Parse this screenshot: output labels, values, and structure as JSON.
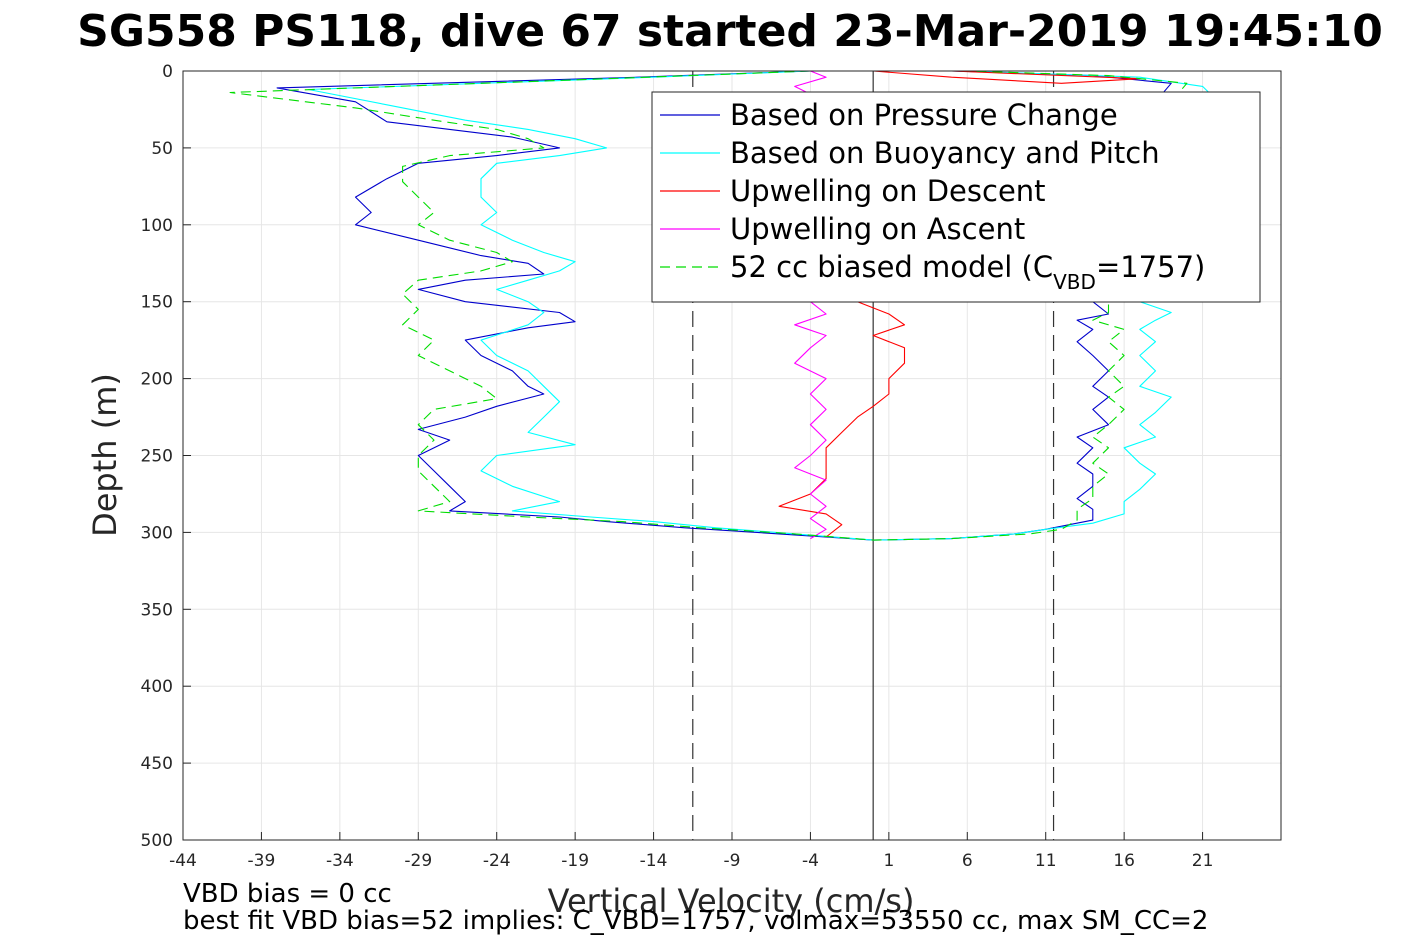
{
  "chart_data": {
    "type": "line",
    "title": "SG558 PS118, dive 67 started 23-Mar-2019 19:45:10",
    "xlabel": "Vertical Velocity (cm/s)",
    "ylabel": "Depth (m)",
    "xlim": [
      -44,
      26
    ],
    "ylim": [
      0,
      500
    ],
    "y_reversed": true,
    "grid": true,
    "xticks": [
      -44,
      -39,
      -34,
      -29,
      -24,
      -19,
      -14,
      -9,
      -4,
      1,
      6,
      11,
      16,
      21
    ],
    "yticks": [
      0,
      50,
      100,
      150,
      200,
      250,
      300,
      350,
      400,
      450,
      500
    ],
    "legend_position": "top-right",
    "legend": [
      {
        "label": "Based on Pressure Change",
        "color": "#0000cc",
        "dash": "solid"
      },
      {
        "label": "Based on Buoyancy and Pitch",
        "color": "#00ffff",
        "dash": "solid"
      },
      {
        "label": "Upwelling on Descent",
        "color": "#ff0000",
        "dash": "solid"
      },
      {
        "label": "Upwelling on Ascent",
        "color": "#ff00ff",
        "dash": "solid"
      },
      {
        "label_main": "52 cc biased model (C",
        "label_sub": "VBD",
        "label_tail": "=1757)",
        "color": "#00dd00",
        "dash": "dashed"
      }
    ],
    "reference_lines": [
      {
        "x": -11.5,
        "style": "dashed",
        "color": "#333333"
      },
      {
        "x": 0,
        "style": "solid",
        "color": "#333333"
      },
      {
        "x": 11.5,
        "style": "dashed",
        "color": "#333333"
      }
    ],
    "series": [
      {
        "name": "Based on Pressure Change",
        "color": "#0000cc",
        "dash": "solid",
        "points": [
          [
            -4,
            0
          ],
          [
            -15,
            4
          ],
          [
            -38,
            11
          ],
          [
            -33,
            20
          ],
          [
            -31,
            33
          ],
          [
            -27,
            38
          ],
          [
            -23,
            43
          ],
          [
            -20,
            50
          ],
          [
            -24,
            55
          ],
          [
            -29,
            60
          ],
          [
            -31,
            70
          ],
          [
            -33,
            82
          ],
          [
            -32,
            92
          ],
          [
            -33,
            100
          ],
          [
            -29,
            110
          ],
          [
            -25,
            120
          ],
          [
            -22,
            125
          ],
          [
            -21,
            132
          ],
          [
            -26,
            136
          ],
          [
            -29,
            142
          ],
          [
            -26,
            150
          ],
          [
            -20,
            157
          ],
          [
            -19,
            163
          ],
          [
            -22,
            167
          ],
          [
            -26,
            175
          ],
          [
            -25,
            185
          ],
          [
            -23,
            195
          ],
          [
            -22,
            205
          ],
          [
            -21,
            210
          ],
          [
            -24,
            218
          ],
          [
            -26,
            225
          ],
          [
            -29,
            233
          ],
          [
            -27,
            240
          ],
          [
            -29,
            250
          ],
          [
            -28,
            260
          ],
          [
            -27,
            270
          ],
          [
            -26,
            280
          ],
          [
            -27,
            286
          ],
          [
            -20,
            290
          ],
          [
            -17,
            293
          ],
          [
            -12,
            297
          ],
          [
            -6,
            301
          ],
          [
            0,
            305
          ],
          [
            5,
            304
          ],
          [
            9,
            301
          ],
          [
            11,
            298
          ],
          [
            14,
            292
          ],
          [
            14,
            285
          ],
          [
            13,
            278
          ],
          [
            14,
            270
          ],
          [
            14,
            262
          ],
          [
            13,
            255
          ],
          [
            14,
            245
          ],
          [
            13,
            238
          ],
          [
            15,
            230
          ],
          [
            14,
            220
          ],
          [
            15,
            212
          ],
          [
            14,
            205
          ],
          [
            15,
            195
          ],
          [
            14,
            185
          ],
          [
            13,
            176
          ],
          [
            14,
            168
          ],
          [
            13,
            162
          ],
          [
            15,
            158
          ],
          [
            14,
            150
          ],
          [
            17,
            70
          ],
          [
            18,
            20
          ],
          [
            19,
            8
          ],
          [
            14,
            3
          ],
          [
            5,
            0
          ]
        ]
      },
      {
        "name": "Based on Buoyancy and Pitch",
        "color": "#00ffff",
        "dash": "solid",
        "points": [
          [
            -4,
            0
          ],
          [
            -14,
            4
          ],
          [
            -36,
            12
          ],
          [
            -31,
            22
          ],
          [
            -26,
            32
          ],
          [
            -22,
            38
          ],
          [
            -19,
            44
          ],
          [
            -17,
            50
          ],
          [
            -20,
            55
          ],
          [
            -24,
            60
          ],
          [
            -25,
            70
          ],
          [
            -25,
            82
          ],
          [
            -24,
            92
          ],
          [
            -25,
            100
          ],
          [
            -23,
            110
          ],
          [
            -21,
            118
          ],
          [
            -19,
            124
          ],
          [
            -20,
            130
          ],
          [
            -22,
            136
          ],
          [
            -24,
            142
          ],
          [
            -22,
            150
          ],
          [
            -21,
            157
          ],
          [
            -22,
            165
          ],
          [
            -25,
            175
          ],
          [
            -24,
            185
          ],
          [
            -22,
            195
          ],
          [
            -21,
            205
          ],
          [
            -20,
            215
          ],
          [
            -21,
            225
          ],
          [
            -22,
            235
          ],
          [
            -19,
            243
          ],
          [
            -24,
            250
          ],
          [
            -25,
            260
          ],
          [
            -23,
            270
          ],
          [
            -20,
            280
          ],
          [
            -23,
            286
          ],
          [
            -18,
            290
          ],
          [
            -14,
            293
          ],
          [
            -10,
            297
          ],
          [
            -5,
            301
          ],
          [
            0,
            305
          ],
          [
            5,
            304
          ],
          [
            9,
            301
          ],
          [
            11,
            298
          ],
          [
            14,
            294
          ],
          [
            16,
            288
          ],
          [
            16,
            280
          ],
          [
            17,
            272
          ],
          [
            18,
            262
          ],
          [
            17,
            255
          ],
          [
            16,
            245
          ],
          [
            18,
            238
          ],
          [
            17,
            230
          ],
          [
            18,
            222
          ],
          [
            19,
            212
          ],
          [
            17,
            205
          ],
          [
            18,
            195
          ],
          [
            17,
            185
          ],
          [
            18,
            176
          ],
          [
            17,
            168
          ],
          [
            18,
            162
          ],
          [
            19,
            157
          ],
          [
            17,
            150
          ],
          [
            21,
            110
          ],
          [
            22,
            55
          ],
          [
            22,
            20
          ],
          [
            21,
            10
          ],
          [
            17,
            4
          ],
          [
            6,
            0
          ]
        ]
      },
      {
        "name": "Upwelling on Descent",
        "color": "#ff0000",
        "dash": "solid",
        "points": [
          [
            -2,
            0
          ],
          [
            5,
            0
          ],
          [
            17,
            5
          ],
          [
            12,
            8
          ],
          [
            5,
            4
          ],
          [
            0,
            0
          ]
        ]
      },
      {
        "name": "Upwelling on Descent",
        "color": "#ff0000",
        "dash": "solid",
        "points": [
          [
            -1,
            150
          ],
          [
            1,
            158
          ],
          [
            2,
            165
          ],
          [
            0,
            172
          ],
          [
            2,
            180
          ],
          [
            2,
            190
          ],
          [
            1,
            200
          ],
          [
            1,
            210
          ],
          [
            0,
            218
          ],
          [
            -1,
            225
          ],
          [
            -2,
            235
          ],
          [
            -3,
            245
          ],
          [
            -3,
            255
          ],
          [
            -3,
            265
          ],
          [
            -4,
            275
          ],
          [
            -6,
            283
          ],
          [
            -3,
            288
          ],
          [
            -2,
            295
          ],
          [
            -3,
            303
          ]
        ]
      },
      {
        "name": "Upwelling on Ascent",
        "color": "#ff00ff",
        "dash": "solid",
        "points": [
          [
            -4,
            0
          ],
          [
            -3,
            4
          ],
          [
            -5,
            10
          ],
          [
            -4,
            15
          ]
        ]
      },
      {
        "name": "Upwelling on Ascent",
        "color": "#ff00ff",
        "dash": "solid",
        "points": [
          [
            -4,
            150
          ],
          [
            -3,
            158
          ],
          [
            -5,
            165
          ],
          [
            -3,
            172
          ],
          [
            -4,
            180
          ],
          [
            -5,
            190
          ],
          [
            -3,
            200
          ],
          [
            -4,
            210
          ],
          [
            -3,
            220
          ],
          [
            -4,
            230
          ],
          [
            -3,
            240
          ],
          [
            -4,
            250
          ],
          [
            -5,
            258
          ],
          [
            -3,
            266
          ],
          [
            -4,
            275
          ],
          [
            -3,
            283
          ],
          [
            -4,
            291
          ],
          [
            -3,
            298
          ],
          [
            -4,
            304
          ]
        ]
      },
      {
        "name": "52 cc biased model",
        "color": "#00dd00",
        "dash": "dashed",
        "points": [
          [
            -4,
            0
          ],
          [
            -17,
            5
          ],
          [
            -41,
            14
          ],
          [
            -33,
            24
          ],
          [
            -28,
            32
          ],
          [
            -24,
            38
          ],
          [
            -22,
            44
          ],
          [
            -21,
            50
          ],
          [
            -27,
            55
          ],
          [
            -30,
            62
          ],
          [
            -30,
            72
          ],
          [
            -29,
            82
          ],
          [
            -28,
            92
          ],
          [
            -29,
            100
          ],
          [
            -27,
            110
          ],
          [
            -24,
            118
          ],
          [
            -23,
            124
          ],
          [
            -25,
            130
          ],
          [
            -29,
            136
          ],
          [
            -30,
            145
          ],
          [
            -29,
            155
          ],
          [
            -30,
            165
          ],
          [
            -28,
            175
          ],
          [
            -29,
            185
          ],
          [
            -27,
            195
          ],
          [
            -25,
            205
          ],
          [
            -24,
            213
          ],
          [
            -28,
            220
          ],
          [
            -29,
            230
          ],
          [
            -28,
            240
          ],
          [
            -29,
            250
          ],
          [
            -29,
            260
          ],
          [
            -28,
            270
          ],
          [
            -27,
            280
          ],
          [
            -29,
            286
          ],
          [
            -22,
            290
          ],
          [
            -16,
            293
          ],
          [
            -11,
            297
          ],
          [
            -5,
            301
          ],
          [
            0,
            305
          ],
          [
            5,
            304
          ],
          [
            10,
            301
          ],
          [
            12,
            298
          ],
          [
            13,
            292
          ],
          [
            13,
            285
          ],
          [
            14,
            278
          ],
          [
            14,
            270
          ],
          [
            15,
            262
          ],
          [
            14,
            255
          ],
          [
            15,
            245
          ],
          [
            14,
            238
          ],
          [
            15,
            230
          ],
          [
            16,
            220
          ],
          [
            15,
            212
          ],
          [
            16,
            205
          ],
          [
            15,
            195
          ],
          [
            16,
            185
          ],
          [
            15,
            176
          ],
          [
            16,
            168
          ],
          [
            14,
            162
          ],
          [
            15,
            157
          ],
          [
            15,
            150
          ],
          [
            17,
            70
          ],
          [
            19,
            20
          ],
          [
            20,
            8
          ],
          [
            15,
            3
          ],
          [
            6,
            0
          ]
        ]
      }
    ]
  },
  "footnotes": {
    "line1": "VBD bias = 0 cc",
    "line2": "best fit VBD bias=52 implies: C_VBD=1757, volmax=53550 cc, max SM_CC=2"
  },
  "colors": {
    "axis": "#262626",
    "grid": "#e6e6e6",
    "background": "#ffffff"
  }
}
